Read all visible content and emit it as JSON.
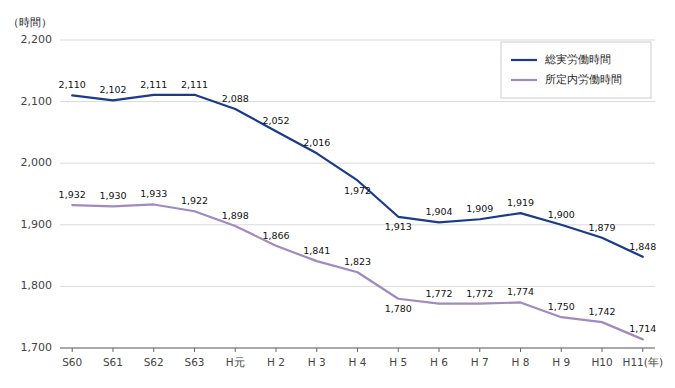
{
  "chart_data": {
    "type": "line",
    "y_label": "（時間）",
    "categories": [
      "S60",
      "S61",
      "S62",
      "S63",
      "H元",
      "H 2",
      "H 3",
      "H 4",
      "H 5",
      "H 6",
      "H 7",
      "H 8",
      "H 9",
      "H10",
      "H11(年)"
    ],
    "series": [
      {
        "name": "総実労働時間",
        "color": "#1a3a8a",
        "values": [
          2110,
          2102,
          2111,
          2111,
          2088,
          2052,
          2016,
          1972,
          1913,
          1904,
          1909,
          1919,
          1900,
          1879,
          1848
        ],
        "value_labels": [
          "2,110",
          "2,102",
          "2,111",
          "2,111",
          "2,088",
          "2,052",
          "2,016",
          "1,972",
          "1,913",
          "1,904",
          "1,909",
          "1,919",
          "1,900",
          "1,879",
          "1,848"
        ]
      },
      {
        "name": "所定内労働時間",
        "color": "#a08abf",
        "values": [
          1932,
          1930,
          1933,
          1922,
          1898,
          1866,
          1841,
          1823,
          1780,
          1772,
          1772,
          1774,
          1750,
          1742,
          1714
        ],
        "value_labels": [
          "1,932",
          "1,930",
          "1,933",
          "1,922",
          "1,898",
          "1,866",
          "1,841",
          "1,823",
          "1,780",
          "1,772",
          "1,772",
          "1,774",
          "1,750",
          "1,742",
          "1,714"
        ]
      }
    ],
    "ylim": [
      1700,
      2200
    ],
    "yticks": [
      {
        "value": 1700,
        "label": "1,700"
      },
      {
        "value": 1800,
        "label": "1,800"
      },
      {
        "value": 1900,
        "label": "1,900"
      },
      {
        "value": 2000,
        "label": "2,000"
      },
      {
        "value": 2100,
        "label": "2,100"
      },
      {
        "value": 2200,
        "label": "2,200"
      }
    ],
    "grid": true,
    "legend": "upper right",
    "data_labels": true
  }
}
